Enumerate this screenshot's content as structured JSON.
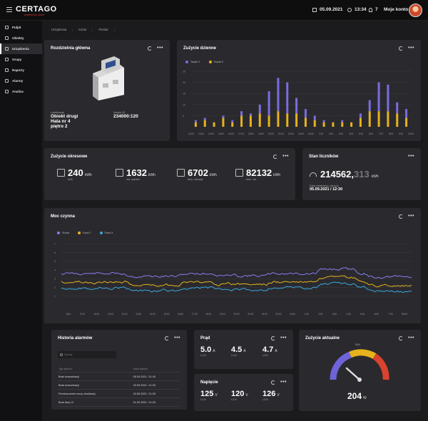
{
  "brand": {
    "name": "CERTAGO",
    "tagline": "powered by Sonel"
  },
  "topbar": {
    "date": "05.09.2021",
    "time": "13:34",
    "notifications": "7",
    "account": "Moje konto"
  },
  "sidebar": {
    "items": [
      {
        "label": "Pulpit",
        "icon": "dashboard-icon"
      },
      {
        "label": "Obiekty",
        "icon": "building-icon"
      },
      {
        "label": "Urządzenia",
        "icon": "device-icon",
        "active": true
      },
      {
        "label": "Grupy",
        "icon": "group-icon"
      },
      {
        "label": "Raporty",
        "icon": "report-icon"
      },
      {
        "label": "Alarmy",
        "icon": "bell-icon"
      },
      {
        "label": "Analiza",
        "icon": "analytics-icon"
      }
    ]
  },
  "breadcrumb": [
    "Urządzenia",
    "Konto",
    "Pomiar"
  ],
  "device": {
    "title": "Rozdzielnia główna",
    "location_label": "Lokalizacja",
    "location": [
      "Obiekt drugi",
      "Hala nr 4",
      "piętro 2"
    ],
    "id_label": "Numer ID",
    "id": "234000:120"
  },
  "daily": {
    "title": "Zużycie dzienne",
    "legend": [
      "Taryfa 1",
      "Taryfa 2"
    ],
    "colors": [
      "#7b6ce0",
      "#e6b21d"
    ],
    "y_ticks": [
      "25",
      "20",
      "15",
      "10",
      "5"
    ],
    "x_ticks": [
      "12:00",
      "13:00",
      "14:00",
      "15:00",
      "16:00",
      "17:00",
      "18:00",
      "19:00",
      "20:00",
      "21:00",
      "22:00",
      "23:00",
      "24:00",
      "1:00",
      "2:00",
      "3:00",
      "4:00",
      "5:00",
      "6:00",
      "7:00",
      "8:00",
      "9:00",
      "10:00"
    ]
  },
  "periodic": {
    "title": "Zużycie okresowe",
    "stats": [
      {
        "value": "240",
        "unit": "kWh",
        "sub": "dziś",
        "icon": "calendar-icon"
      },
      {
        "value": "1632",
        "unit": "kWh",
        "sub": "ost. tydzień",
        "icon": "calendar-week-icon"
      },
      {
        "value": "6702",
        "unit": "kWh",
        "sub": "bież. miesiąc",
        "icon": "calendar-month-icon"
      },
      {
        "value": "82132",
        "unit": "kWh",
        "sub": "bież. rok",
        "icon": "calendar-year-icon"
      }
    ]
  },
  "meter": {
    "title": "Stan liczników",
    "value_main": "214562,",
    "value_dec": "313",
    "unit": "kWh",
    "read_label": "Data ostatniego odczytu",
    "read_date": "05.09.2021 / 12:30"
  },
  "power": {
    "title": "Moc czynna",
    "legend": [
      "Suma",
      "Faza 2",
      "Faza 3"
    ],
    "colors": [
      "#8a7bf0",
      "#e6b21d",
      "#3aa7e0"
    ],
    "y_ticks": [
      "7",
      "6",
      "5",
      "4",
      "3",
      "2",
      "1"
    ],
    "x_ticks": [
      "8:00",
      "9:00",
      "10:00",
      "11:00",
      "12:00",
      "13:00",
      "14:00",
      "15:00",
      "16:00",
      "17:00",
      "18:00",
      "19:00",
      "20:00",
      "21:00",
      "22:00",
      "23:00",
      "24:00",
      "1:00",
      "2:00",
      "3:00",
      "4:00",
      "5:00",
      "6:00",
      "7:00",
      "08:00"
    ]
  },
  "alarms": {
    "title": "Historia alarmów",
    "search_placeholder": "Szukaj",
    "columns": [
      "Typ alarmu",
      "Data alarmu"
    ],
    "rows": [
      [
        "Brak komunikacji",
        "05.09.2021 / 11:15"
      ],
      [
        "Brak komunikacji",
        "03.09.2021 / 11:03"
      ],
      [
        "Przekroczenie mocy chwilowej",
        "02.05.2021 / 11:03"
      ],
      [
        "Brak fazy L2",
        "01.02.2021 / 11:03"
      ]
    ]
  },
  "current": {
    "title": "Prąd",
    "phases": [
      {
        "value": "5.0",
        "unit": "A",
        "sub": "L1-N"
      },
      {
        "value": "4.5",
        "unit": "A",
        "sub": "L2-N"
      },
      {
        "value": "4.7",
        "unit": "A",
        "sub": "L3-N"
      }
    ]
  },
  "voltage": {
    "title": "Napięcie",
    "phases": [
      {
        "value": "125",
        "unit": "V",
        "sub": "L1-N"
      },
      {
        "value": "120",
        "unit": "V",
        "sub": "L2-N"
      },
      {
        "value": "126",
        "unit": "V",
        "sub": "L3-N"
      }
    ]
  },
  "gauge": {
    "title": "Zużycie aktualne",
    "value": "204",
    "unit": "W",
    "label": "50%",
    "colors": [
      "#6f63d8",
      "#e6b21d",
      "#d8432f"
    ]
  }
}
